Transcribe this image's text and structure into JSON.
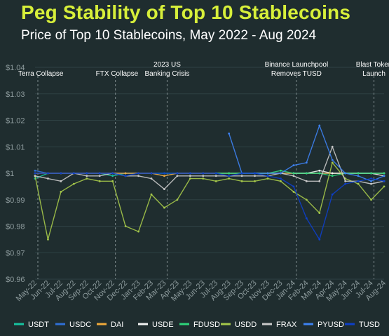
{
  "header": {
    "title": "Peg Stability of Top 10 Stablecoins",
    "subtitle": "Price of Top 10 Stablecoins, May 2022 - Aug 2024"
  },
  "chart_data": {
    "type": "line",
    "title": "Peg Stability of Top 10 Stablecoins",
    "subtitle": "Price of Top 10 Stablecoins, May 2022 - Aug 2024",
    "xlabel": "",
    "ylabel": "",
    "ylim": [
      0.96,
      1.04
    ],
    "yticks": [
      "$1.04",
      "$1.03",
      "$1.02",
      "$1.01",
      "$1",
      "$0.99",
      "$0.98",
      "$0.97",
      "$0.96"
    ],
    "x": [
      "May-22",
      "Jun-22",
      "Jul-22",
      "Aug-22",
      "Sep-22",
      "Oct-22",
      "Nov-22",
      "Dec-22",
      "Jan-23",
      "Feb-23",
      "Mar-23",
      "Apr-23",
      "May-23",
      "Jun-23",
      "Jul-23",
      "Aug-23",
      "Sep-23",
      "Oct-23",
      "Nov-23",
      "Dec-23",
      "Jan-24",
      "Feb-24",
      "Mar-24",
      "Apr-24",
      "May-24",
      "Jun-24",
      "Jul-24",
      "Aug-24"
    ],
    "grid": true,
    "legend_position": "bottom",
    "annotations": [
      {
        "label": "Terra Collapse",
        "x": "May-22"
      },
      {
        "label": "FTX Collapse",
        "x": "Nov-22"
      },
      {
        "label": "2023 US Banking Crisis",
        "x": "Mar-23"
      },
      {
        "label": "Binance Launchpool Removes TUSD",
        "x": "Jan-24"
      },
      {
        "label": "Blast Token Launch",
        "x": "Jul-24"
      }
    ],
    "series": [
      {
        "name": "USDT",
        "color": "#17c3a0",
        "values": [
          0.998,
          1.0,
          1.0,
          1.0,
          1.0,
          1.0,
          0.999,
          1.0,
          1.0,
          1.0,
          1.0,
          1.0,
          1.0,
          1.0,
          1.0,
          1.0,
          1.0,
          1.0,
          1.0,
          1.0,
          1.0,
          1.0,
          1.0,
          1.0,
          1.0,
          1.0,
          1.0,
          1.0
        ]
      },
      {
        "name": "USDC",
        "color": "#2f6fd6",
        "values": [
          1.001,
          1.0,
          1.0,
          1.0,
          1.0,
          1.0,
          1.0,
          1.0,
          1.0,
          1.0,
          0.999,
          1.0,
          1.0,
          1.0,
          1.0,
          1.0,
          1.0,
          1.0,
          1.0,
          1.0,
          1.0,
          1.0,
          1.0,
          1.0,
          1.0,
          1.0,
          1.0,
          1.0
        ]
      },
      {
        "name": "DAI",
        "color": "#f0a93a",
        "values": [
          1.0,
          1.0,
          1.0,
          1.0,
          1.0,
          1.0,
          1.0,
          1.0,
          1.0,
          1.0,
          0.999,
          1.0,
          1.0,
          1.0,
          1.0,
          1.0,
          1.0,
          1.0,
          1.0,
          1.0,
          1.0,
          1.0,
          1.0,
          1.0,
          1.0,
          1.0,
          1.0,
          1.0
        ]
      },
      {
        "name": "USDE",
        "color": "#f2f2f2",
        "values": [
          null,
          null,
          null,
          null,
          null,
          null,
          null,
          null,
          null,
          null,
          null,
          null,
          null,
          null,
          null,
          null,
          null,
          null,
          null,
          null,
          1.0,
          1.0,
          1.001,
          1.0,
          1.0,
          1.0,
          1.0,
          0.999
        ]
      },
      {
        "name": "FDUSD",
        "color": "#2ed47a",
        "values": [
          null,
          null,
          null,
          null,
          null,
          null,
          null,
          null,
          null,
          null,
          null,
          null,
          null,
          null,
          1.0,
          1.0,
          1.0,
          1.0,
          1.0,
          1.001,
          1.0,
          1.0,
          1.0,
          0.999,
          1.0,
          1.0,
          1.0,
          1.0
        ]
      },
      {
        "name": "USDD",
        "color": "#a5c84a",
        "values": [
          0.999,
          0.975,
          0.993,
          0.996,
          0.998,
          0.997,
          0.997,
          0.98,
          0.978,
          0.992,
          0.987,
          0.99,
          0.998,
          0.998,
          0.997,
          0.998,
          0.997,
          0.997,
          0.998,
          0.997,
          0.993,
          0.99,
          0.985,
          1.004,
          0.998,
          0.996,
          0.99,
          0.995
        ]
      },
      {
        "name": "FRAX",
        "color": "#c9c9c9",
        "values": [
          0.999,
          0.998,
          0.997,
          1.0,
          0.999,
          0.999,
          1.0,
          0.999,
          0.999,
          0.998,
          0.994,
          0.999,
          0.999,
          0.999,
          0.999,
          0.999,
          0.999,
          0.999,
          0.999,
          1.0,
          0.999,
          0.997,
          0.997,
          1.01,
          0.997,
          0.997,
          0.996,
          0.997
        ]
      },
      {
        "name": "PYUSD",
        "color": "#3d82f2",
        "values": [
          null,
          null,
          null,
          null,
          null,
          null,
          null,
          null,
          null,
          null,
          null,
          null,
          null,
          null,
          null,
          1.015,
          1.0,
          1.0,
          1.0,
          1.0,
          1.003,
          1.004,
          1.018,
          1.005,
          1.0,
          0.999,
          0.997,
          0.999
        ]
      },
      {
        "name": "TUSD",
        "color": "#0d3fc9",
        "values": [
          1.0,
          1.0,
          1.0,
          1.0,
          1.0,
          1.0,
          1.0,
          0.999,
          1.0,
          1.0,
          1.0,
          1.0,
          1.0,
          1.0,
          1.0,
          0.999,
          1.0,
          1.0,
          0.999,
          0.998,
          0.995,
          0.983,
          0.975,
          0.992,
          0.996,
          0.997,
          0.998,
          0.997
        ]
      }
    ]
  }
}
